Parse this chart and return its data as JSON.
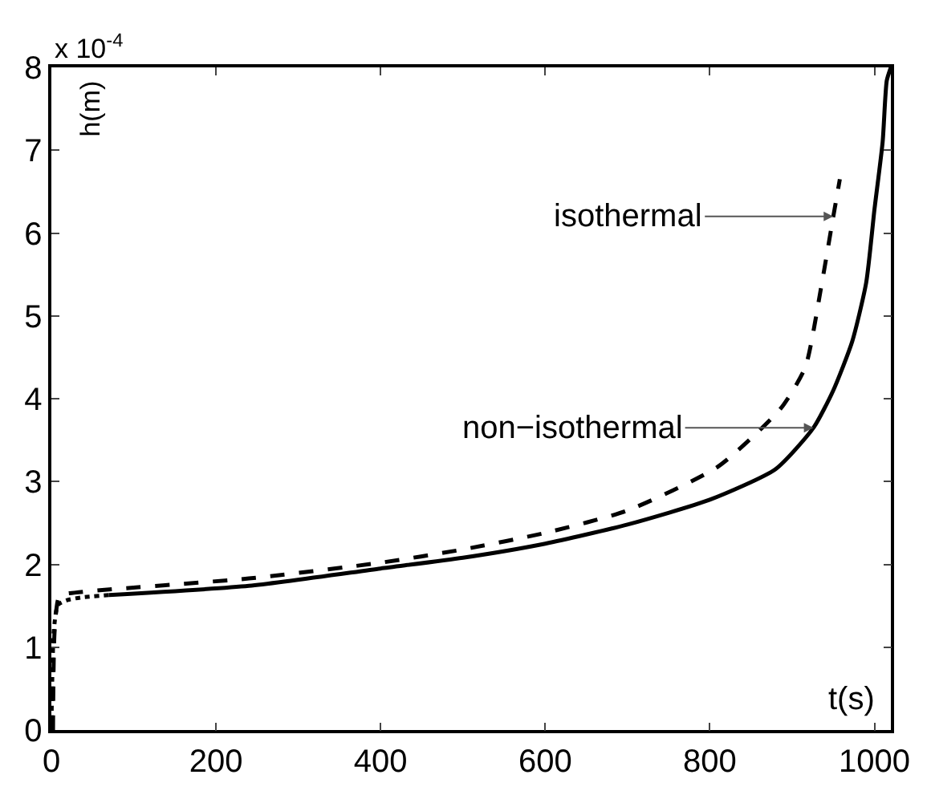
{
  "chart_data": {
    "type": "line",
    "xlabel": "t(s)",
    "ylabel": "h(m)",
    "xlim": [
      0,
      1020
    ],
    "ylim": [
      0,
      8
    ],
    "xticks": [
      0,
      200,
      400,
      600,
      800,
      1000
    ],
    "yticks": [
      0,
      1,
      2,
      3,
      4,
      5,
      6,
      7,
      8
    ],
    "marker": "none",
    "series": [
      {
        "color": "#000000",
        "line_style": "solid",
        "x": [
          70,
          240,
          400,
          500,
          600,
          700,
          800,
          880,
          926,
          950,
          973,
          990,
          1000,
          1010,
          1015,
          1020
        ],
        "values": [
          1.63,
          1.74,
          1.95,
          2.08,
          2.25,
          2.48,
          2.78,
          3.15,
          3.65,
          4.1,
          4.69,
          5.4,
          6.28,
          7.1,
          7.84,
          8
        ]
      },
      {
        "color": "#000000",
        "line_style": "dashed",
        "x": [
          2,
          4,
          10,
          30,
          240,
          400,
          500,
          600,
          700,
          810,
          886,
          916,
          935,
          949,
          958
        ],
        "values": [
          0,
          1.2,
          1.62,
          1.66,
          1.83,
          2.02,
          2.18,
          2.38,
          2.65,
          3.18,
          3.88,
          4.38,
          5.33,
          6.14,
          6.65
        ]
      },
      {
        "color": "#000000",
        "line_style": "dotted",
        "x": [
          0,
          3,
          8,
          20,
          36,
          70
        ],
        "values": [
          0,
          1.2,
          1.51,
          1.57,
          1.6,
          1.63
        ]
      }
    ],
    "annotations": [
      "x 10$^{-4}$",
      {
        "text": "isothermal",
        "x": 950,
        "y": 6.2
      },
      {
        "text": "non−isothermal",
        "x": 926,
        "y": 3.65
      }
    ]
  }
}
